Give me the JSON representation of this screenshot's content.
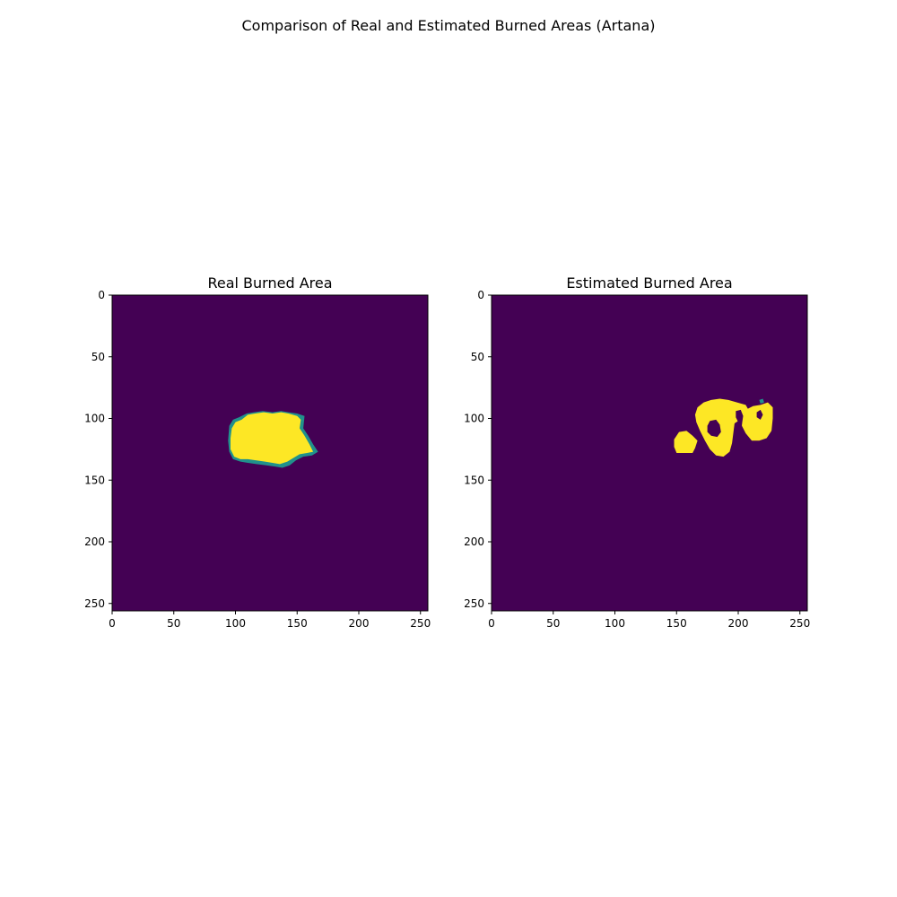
{
  "figure": {
    "suptitle": "Comparison of Real and Estimated Burned Areas (Artana)"
  },
  "chart_data": [
    {
      "type": "heatmap",
      "title": "Real Burned Area",
      "xlabel": "",
      "ylabel": "",
      "xlim": [
        0,
        256
      ],
      "ylim": [
        256,
        0
      ],
      "xticks": [
        0,
        50,
        100,
        150,
        200,
        250
      ],
      "yticks": [
        0,
        50,
        100,
        150,
        200,
        250
      ],
      "grid": false,
      "colormap": {
        "background": "#440154",
        "mid": "#21918c",
        "high": "#fde725"
      },
      "regions": [
        {
          "value": "mid",
          "points": [
            [
              95,
              106
            ],
            [
              98,
              101
            ],
            [
              103,
              99
            ],
            [
              109,
              96
            ],
            [
              115,
              95
            ],
            [
              122,
              94
            ],
            [
              130,
              95
            ],
            [
              137,
              94
            ],
            [
              143,
              95
            ],
            [
              150,
              96
            ],
            [
              156,
              98
            ],
            [
              155,
              108
            ],
            [
              159,
              114
            ],
            [
              163,
              121
            ],
            [
              167,
              127
            ],
            [
              162,
              130
            ],
            [
              155,
              131
            ],
            [
              149,
              134
            ],
            [
              144,
              138
            ],
            [
              138,
              140
            ],
            [
              132,
              139
            ],
            [
              125,
              138
            ],
            [
              117,
              137
            ],
            [
              110,
              136
            ],
            [
              104,
              135
            ],
            [
              98,
              133
            ],
            [
              95,
              127
            ],
            [
              94,
              118
            ]
          ]
        },
        {
          "value": "high",
          "points": [
            [
              97,
              108
            ],
            [
              100,
              103
            ],
            [
              105,
              101
            ],
            [
              110,
              97
            ],
            [
              116,
              96
            ],
            [
              123,
              95
            ],
            [
              130,
              96
            ],
            [
              137,
              95
            ],
            [
              143,
              96
            ],
            [
              150,
              98
            ],
            [
              153,
              101
            ],
            [
              152,
              108
            ],
            [
              156,
              114
            ],
            [
              160,
              121
            ],
            [
              163,
              127
            ],
            [
              158,
              128
            ],
            [
              152,
              129
            ],
            [
              147,
              132
            ],
            [
              142,
              135
            ],
            [
              136,
              137
            ],
            [
              130,
              136
            ],
            [
              124,
              135
            ],
            [
              117,
              134
            ],
            [
              110,
              133
            ],
            [
              104,
              133
            ],
            [
              99,
              131
            ],
            [
              96,
              125
            ],
            [
              96,
              116
            ]
          ]
        }
      ]
    },
    {
      "type": "heatmap",
      "title": "Estimated Burned Area",
      "xlabel": "",
      "ylabel": "",
      "xlim": [
        0,
        256
      ],
      "ylim": [
        256,
        0
      ],
      "xticks": [
        0,
        50,
        100,
        150,
        200,
        250
      ],
      "yticks": [
        0,
        50,
        100,
        150,
        200,
        250
      ],
      "grid": false,
      "colormap": {
        "background": "#440154",
        "mid": "#21918c",
        "high": "#fde725"
      },
      "regions": [
        {
          "value": "high",
          "points": [
            [
              148,
              117
            ],
            [
              152,
              111
            ],
            [
              158,
              110
            ],
            [
              163,
              114
            ],
            [
              167,
              118
            ],
            [
              165,
              124
            ],
            [
              163,
              128
            ],
            [
              156,
              128
            ],
            [
              150,
              128
            ],
            [
              148,
              123
            ]
          ]
        },
        {
          "value": "high",
          "points": [
            [
              165,
              97
            ],
            [
              167,
              91
            ],
            [
              172,
              87
            ],
            [
              178,
              85
            ],
            [
              185,
              84
            ],
            [
              192,
              85
            ],
            [
              199,
              87
            ],
            [
              206,
              89
            ],
            [
              210,
              96
            ],
            [
              203,
              100
            ],
            [
              197,
              104
            ],
            [
              196,
              112
            ],
            [
              195,
              120
            ],
            [
              193,
              127
            ],
            [
              188,
              131
            ],
            [
              182,
              130
            ],
            [
              177,
              125
            ],
            [
              173,
              118
            ],
            [
              169,
              110
            ],
            [
              166,
              103
            ]
          ]
        },
        {
          "value": "high",
          "points": [
            [
              203,
              99
            ],
            [
              206,
              93
            ],
            [
              212,
              90
            ],
            [
              218,
              89
            ],
            [
              224,
              87
            ],
            [
              228,
              91
            ],
            [
              228,
              100
            ],
            [
              227,
              110
            ],
            [
              223,
              116
            ],
            [
              217,
              118
            ],
            [
              211,
              118
            ],
            [
              206,
              112
            ],
            [
              203,
              106
            ]
          ]
        },
        {
          "value": "background",
          "points": [
            [
              175,
              106
            ],
            [
              177,
              102
            ],
            [
              182,
              101
            ],
            [
              185,
              105
            ],
            [
              186,
              111
            ],
            [
              183,
              115
            ],
            [
              178,
              114
            ],
            [
              175,
              111
            ]
          ]
        },
        {
          "value": "background",
          "points": [
            [
              198,
              94
            ],
            [
              202,
              93
            ],
            [
              204,
              98
            ],
            [
              203,
              105
            ],
            [
              200,
              103
            ],
            [
              198,
              99
            ]
          ]
        },
        {
          "value": "background",
          "points": [
            [
              215,
              95
            ],
            [
              218,
              93
            ],
            [
              220,
              97
            ],
            [
              218,
              101
            ],
            [
              215,
              99
            ]
          ]
        },
        {
          "value": "mid",
          "points": [
            [
              217,
              85
            ],
            [
              220,
              84
            ],
            [
              221,
              87
            ],
            [
              218,
              88
            ]
          ]
        }
      ]
    }
  ]
}
